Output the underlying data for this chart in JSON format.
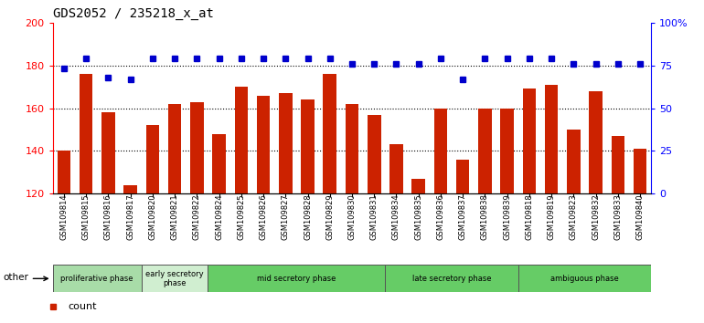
{
  "title": "GDS2052 / 235218_x_at",
  "samples": [
    "GSM109814",
    "GSM109815",
    "GSM109816",
    "GSM109817",
    "GSM109820",
    "GSM109821",
    "GSM109822",
    "GSM109824",
    "GSM109825",
    "GSM109826",
    "GSM109827",
    "GSM109828",
    "GSM109829",
    "GSM109830",
    "GSM109831",
    "GSM109834",
    "GSM109835",
    "GSM109836",
    "GSM109837",
    "GSM109838",
    "GSM109839",
    "GSM109818",
    "GSM109819",
    "GSM109823",
    "GSM109832",
    "GSM109833",
    "GSM109840"
  ],
  "counts": [
    140,
    176,
    158,
    124,
    152,
    162,
    163,
    148,
    170,
    166,
    167,
    164,
    176,
    162,
    157,
    143,
    127,
    160,
    136,
    160,
    160,
    169,
    171,
    150,
    168,
    147,
    141
  ],
  "percentiles": [
    73,
    79,
    68,
    67,
    79,
    79,
    79,
    79,
    79,
    79,
    79,
    79,
    79,
    76,
    76,
    76,
    76,
    79,
    67,
    79,
    79,
    79,
    79,
    76,
    76,
    76,
    76
  ],
  "phases": [
    {
      "label": "proliferative phase",
      "start": 0,
      "end": 4,
      "color_key": "light"
    },
    {
      "label": "early secretory\nphase",
      "start": 4,
      "end": 7,
      "color_key": "lighter"
    },
    {
      "label": "mid secretory phase",
      "start": 7,
      "end": 15,
      "color_key": "bright"
    },
    {
      "label": "late secretory phase",
      "start": 15,
      "end": 21,
      "color_key": "bright"
    },
    {
      "label": "ambiguous phase",
      "start": 21,
      "end": 27,
      "color_key": "bright"
    }
  ],
  "phase_colors": {
    "light": "#a8dca8",
    "lighter": "#d0eed0",
    "bright": "#66cc66"
  },
  "bar_color": "#cc2200",
  "dot_color": "#0000cc",
  "ylim_left": [
    120,
    200
  ],
  "ylim_right": [
    0,
    100
  ],
  "yticks_left": [
    120,
    140,
    160,
    180,
    200
  ],
  "yticks_right": [
    0,
    25,
    50,
    75,
    100
  ],
  "ytick_labels_right": [
    "0",
    "25",
    "50",
    "75",
    "100%"
  ],
  "grid_values": [
    140,
    160,
    180
  ],
  "other_label": "other"
}
